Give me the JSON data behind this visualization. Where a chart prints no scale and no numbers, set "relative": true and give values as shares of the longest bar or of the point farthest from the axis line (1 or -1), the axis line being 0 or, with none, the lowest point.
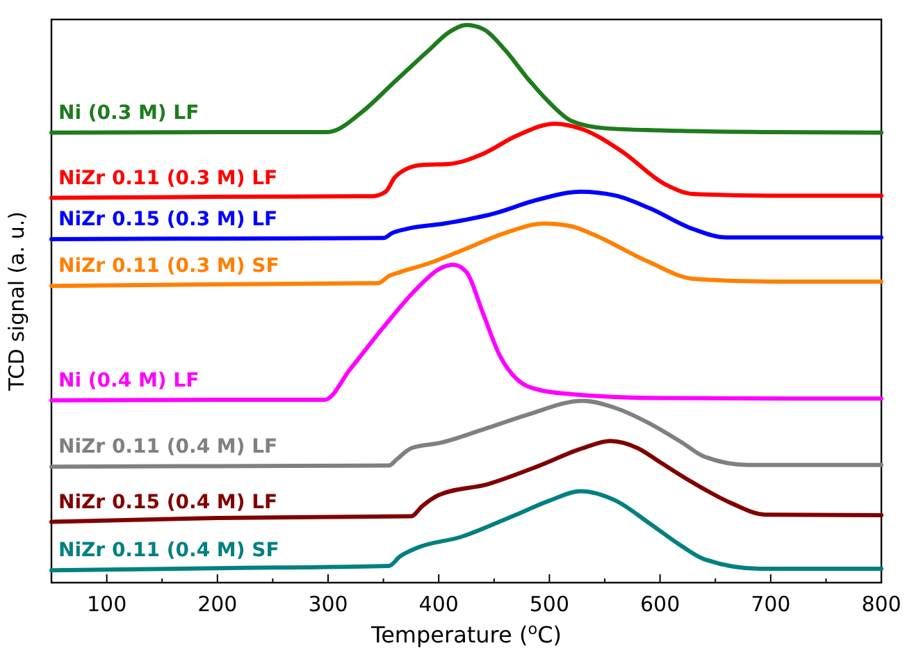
{
  "chart_data": {
    "type": "line",
    "relative": true,
    "xlabel": "Temperature ($^{o}$C)",
    "ylabel": "TCD signal (a. u.)",
    "xlim": [
      50,
      800
    ],
    "xticks": [
      100,
      {
        "value": 150,
        "label": null
      },
      200,
      {
        "value": 250,
        "label": null
      },
      300,
      {
        "value": 350,
        "label": null
      },
      400,
      {
        "value": 450,
        "label": null
      },
      500,
      {
        "value": 550,
        "label": null
      },
      600,
      {
        "value": 650,
        "label": null
      },
      700,
      {
        "value": 750,
        "label": null
      },
      800
    ],
    "grid": false,
    "legend": false,
    "marker": "none",
    "line_style": "solid",
    "series": [
      {
        "name": "Ni (0.3 M) LF",
        "color": "#1e7b1e",
        "x": [
          50,
          200,
          300,
          305,
          330,
          360,
          390,
          410,
          425,
          440,
          460,
          480,
          500,
          520,
          550,
          600,
          700,
          800
        ],
        "values": [
          0.807,
          0.808,
          0.808,
          0.81,
          0.843,
          0.898,
          0.953,
          0.988,
          1,
          0.993,
          0.955,
          0.905,
          0.861,
          0.828,
          0.815,
          0.811,
          0.808,
          0.807
        ]
      },
      {
        "name": "NiZr 0.11 (0.3 M) LF",
        "color": "#ff0000",
        "x": [
          50,
          200,
          340,
          352,
          360,
          370,
          385,
          410,
          440,
          470,
          505,
          530,
          565,
          605,
          630,
          700,
          800
        ],
        "values": [
          0.69,
          0.692,
          0.693,
          0.701,
          0.726,
          0.741,
          0.749,
          0.751,
          0.769,
          0.801,
          0.823,
          0.813,
          0.774,
          0.714,
          0.697,
          0.694,
          0.694
        ]
      },
      {
        "name": "NiZr 0.15 (0.3 M) LF",
        "color": "#0000ff",
        "x": [
          50,
          200,
          350,
          358,
          370,
          405,
          450,
          490,
          528,
          560,
          590,
          630,
          660,
          800
        ],
        "values": [
          0.616,
          0.617,
          0.618,
          0.627,
          0.634,
          0.644,
          0.662,
          0.687,
          0.701,
          0.694,
          0.672,
          0.634,
          0.619,
          0.619
        ]
      },
      {
        "name": "NiZr 0.11 (0.3 M) SF",
        "color": "#ff8000",
        "x": [
          50,
          200,
          345,
          355,
          365,
          390,
          420,
          460,
          495,
          520,
          540,
          590,
          630,
          700,
          800
        ],
        "values": [
          0.532,
          0.535,
          0.537,
          0.55,
          0.557,
          0.572,
          0.595,
          0.627,
          0.644,
          0.639,
          0.624,
          0.575,
          0.545,
          0.54,
          0.54
        ]
      },
      {
        "name": "Ni (0.4 M) LF",
        "color": "#ff00ff",
        "x": [
          50,
          200,
          297,
          320,
          350,
          380,
          400,
          413,
          425,
          440,
          455,
          470,
          490,
          520,
          600,
          800
        ],
        "values": [
          0.327,
          0.328,
          0.328,
          0.383,
          0.458,
          0.527,
          0.562,
          0.57,
          0.557,
          0.483,
          0.408,
          0.366,
          0.346,
          0.338,
          0.331,
          0.33
        ]
      },
      {
        "name": "NiZr 0.11 (0.4 M) LF",
        "color": "#808080",
        "x": [
          50,
          200,
          355,
          362,
          375,
          402,
          442,
          480,
          530,
          560,
          590,
          620,
          640,
          680,
          800
        ],
        "values": [
          0.208,
          0.209,
          0.21,
          0.221,
          0.241,
          0.251,
          0.276,
          0.301,
          0.326,
          0.313,
          0.286,
          0.251,
          0.226,
          0.211,
          0.211
        ]
      },
      {
        "name": "NiZr 0.15 (0.4 M) LF",
        "color": "#800000",
        "x": [
          50,
          200,
          375,
          385,
          400,
          445,
          490,
          530,
          555,
          580,
          600,
          630,
          665,
          695,
          800
        ],
        "values": [
          0.109,
          0.116,
          0.119,
          0.137,
          0.157,
          0.177,
          0.209,
          0.241,
          0.254,
          0.241,
          0.216,
          0.179,
          0.142,
          0.122,
          0.121
        ]
      },
      {
        "name": "NiZr 0.11 (0.4 M) SF",
        "color": "#008080",
        "x": [
          50,
          200,
          355,
          365,
          380,
          420,
          470,
          500,
          528,
          560,
          590,
          620,
          640,
          690,
          800
        ],
        "values": [
          0.022,
          0.026,
          0.03,
          0.047,
          0.062,
          0.082,
          0.122,
          0.147,
          0.164,
          0.147,
          0.107,
          0.065,
          0.042,
          0.025,
          0.025
        ]
      }
    ]
  }
}
